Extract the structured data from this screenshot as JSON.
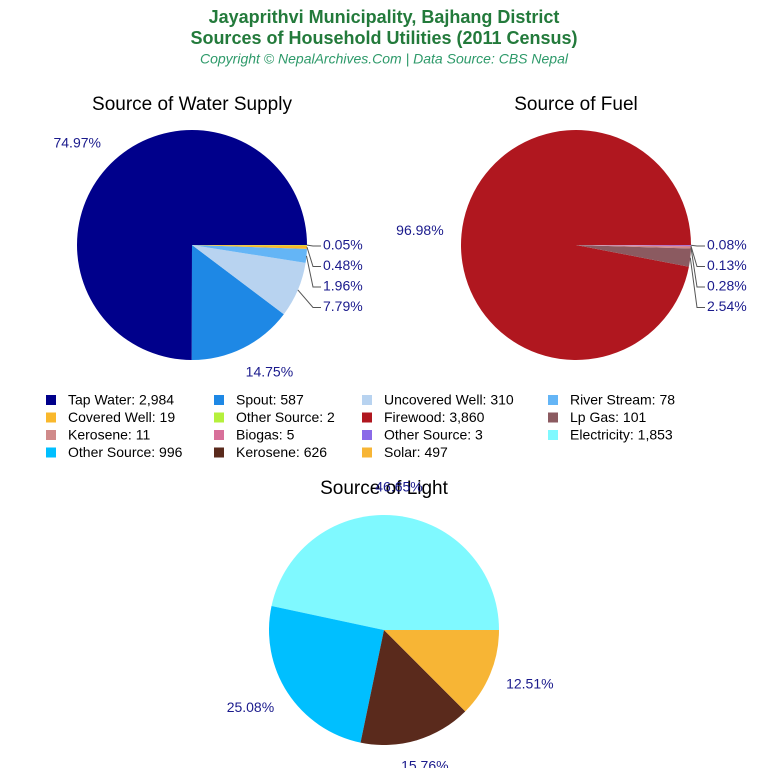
{
  "title": [
    "Jayaprithvi Municipality, Bajhang District",
    "Sources of Household Utilities (2011 Census)"
  ],
  "subtitle": "Copyright © NepalArchives.Com | Data Source: CBS Nepal",
  "chart_data": [
    {
      "type": "pie",
      "title": "Source of Water Supply",
      "categories": [
        "Tap Water: 2,984",
        "Spout: 587",
        "Uncovered Well: 310",
        "River Stream: 78",
        "Covered Well: 19",
        "Other Source: 2"
      ],
      "values": [
        74.97,
        14.75,
        7.79,
        1.96,
        0.48,
        0.05
      ],
      "value_labels": [
        "74.97%",
        "14.75%",
        "7.79%",
        "1.96%",
        "0.48%",
        "0.05%"
      ],
      "colors": [
        "#00008b",
        "#1e88e5",
        "#b8d3f0",
        "#64b5f6",
        "#f9b82c",
        "#b5f03c"
      ]
    },
    {
      "type": "pie",
      "title": "Source of Fuel",
      "categories": [
        "Firewood: 3,860",
        "Lp Gas: 101",
        "Kerosene: 11",
        "Biogas: 5",
        "Other Source: 3"
      ],
      "values": [
        96.98,
        2.54,
        0.28,
        0.13,
        0.08
      ],
      "value_labels": [
        "96.98%",
        "2.54%",
        "0.28%",
        "0.13%",
        "0.08%"
      ],
      "colors": [
        "#b0171f",
        "#8b5a60",
        "#d08a8a",
        "#d8709a",
        "#8a6ae8"
      ]
    },
    {
      "type": "pie",
      "title": "Source of Light",
      "categories": [
        "Electricity: 1,853",
        "Other Source: 996",
        "Kerosene: 626",
        "Solar: 497"
      ],
      "values": [
        46.65,
        25.08,
        15.76,
        12.51
      ],
      "value_labels": [
        "46.65%",
        "25.08%",
        "15.76%",
        "12.51%"
      ],
      "colors": [
        "#7ff9ff",
        "#00bfff",
        "#5a2a1c",
        "#f7b535"
      ]
    }
  ]
}
